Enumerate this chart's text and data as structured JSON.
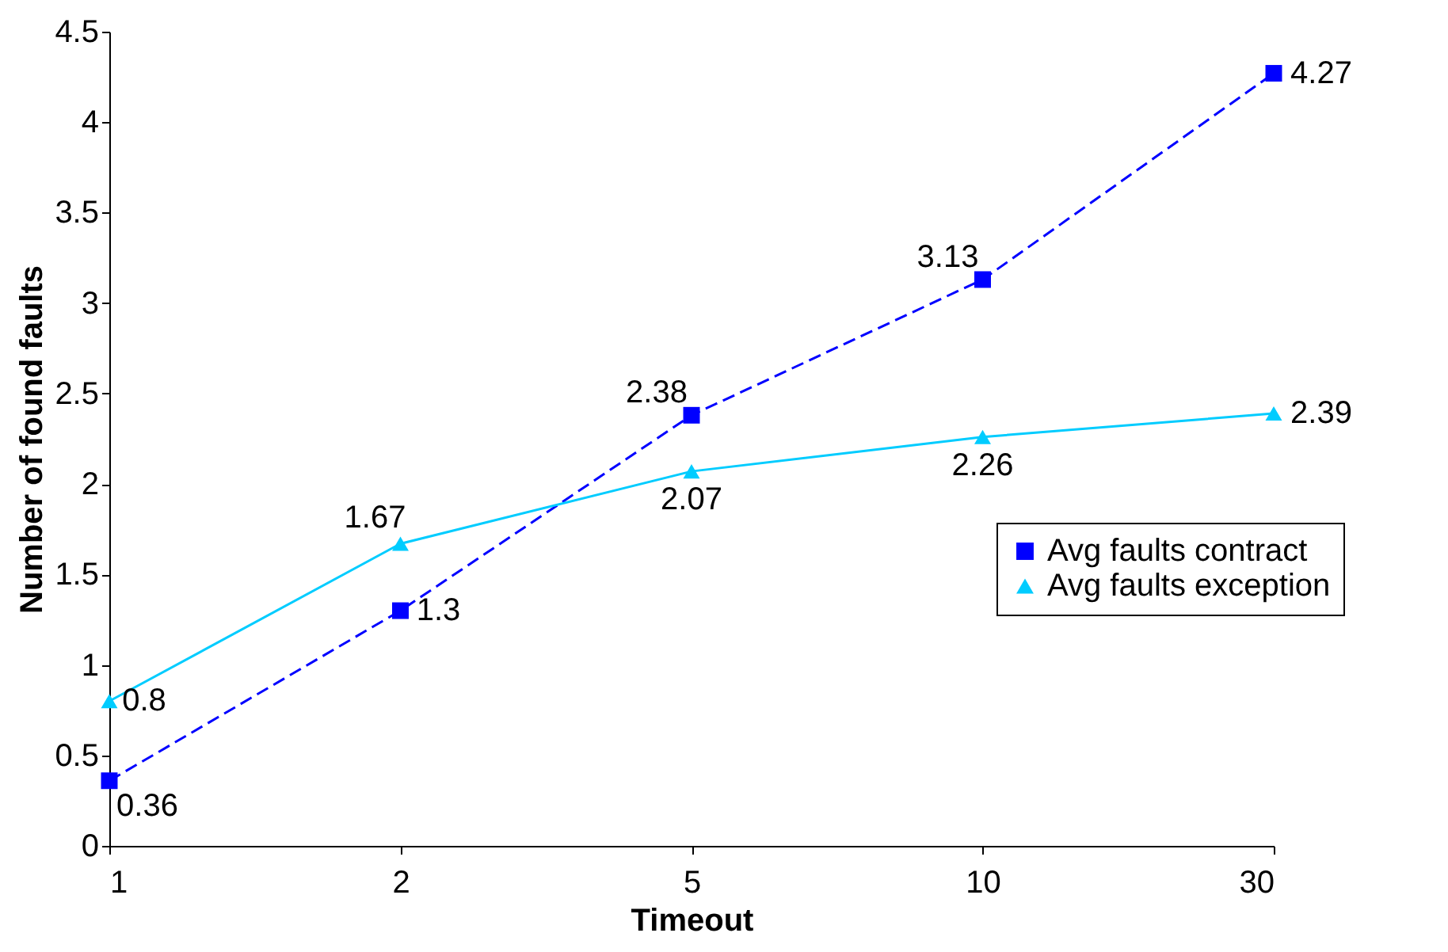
{
  "chart_data": {
    "type": "line",
    "xlabel": "Timeout",
    "ylabel": "Number of found faults",
    "categories": [
      "1",
      "2",
      "5",
      "10",
      "30"
    ],
    "series": [
      {
        "name": "Avg faults contract",
        "color": "#0000ff",
        "marker": "square",
        "line_style": "dashed",
        "values": [
          0.36,
          1.3,
          2.38,
          3.13,
          4.27
        ]
      },
      {
        "name": "Avg faults exception",
        "color": "#00ccff",
        "marker": "triangle",
        "line_style": "solid",
        "values": [
          0.8,
          1.67,
          2.07,
          2.26,
          2.39
        ]
      }
    ],
    "ylim": [
      0,
      4.5
    ],
    "yticks": [
      0,
      0.5,
      1,
      1.5,
      2,
      2.5,
      3,
      3.5,
      4,
      4.5
    ],
    "data_labels": true,
    "grid": false,
    "legend": "right"
  }
}
